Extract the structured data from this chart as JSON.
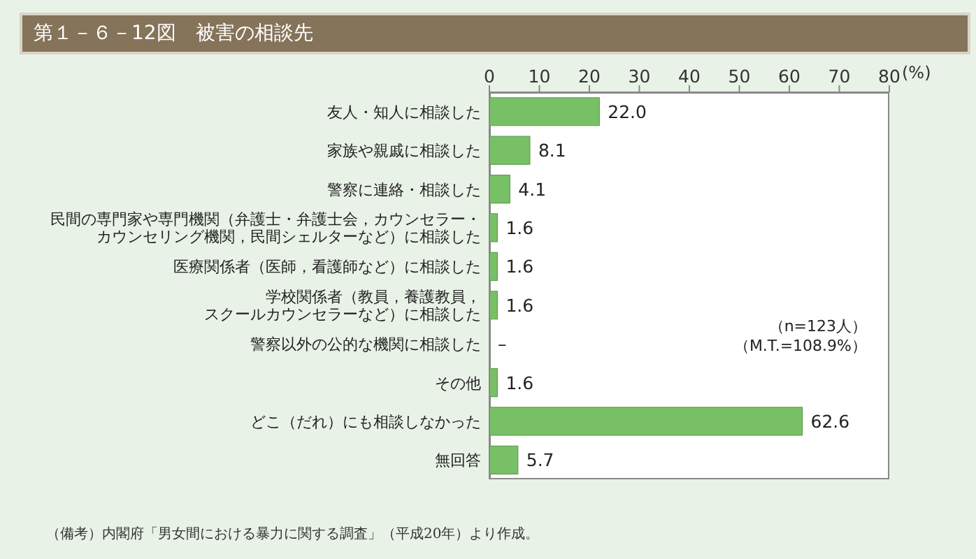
{
  "chart_data": {
    "type": "bar",
    "orientation": "horizontal",
    "title": "第１－６－12図　被害の相談先",
    "categories": [
      "友人・知人に相談した",
      "家族や親戚に相談した",
      "警察に連絡・相談した",
      "民間の専門家や専門機関（弁護士・弁護士会，カウンセラー・カウンセリング機関，民間シェルターなど）に相談した",
      "医療関係者（医師，看護師など）に相談した",
      "学校関係者（教員，養護教員，スクールカウンセラーなど）に相談した",
      "警察以外の公的な機関に相談した",
      "その他",
      "どこ（だれ）にも相談しなかった",
      "無回答"
    ],
    "values": [
      22.0,
      8.1,
      4.1,
      1.6,
      1.6,
      1.6,
      0,
      1.6,
      62.6,
      5.7
    ],
    "value_labels": [
      "22.0",
      "8.1",
      "4.1",
      "1.6",
      "1.6",
      "1.6",
      "–",
      "1.6",
      "62.6",
      "5.7"
    ],
    "color": "#78c065",
    "xlim": [
      0,
      80
    ],
    "xticks": [
      0,
      10,
      20,
      30,
      40,
      50,
      60,
      70,
      80
    ],
    "xlabel": "(%)",
    "annotations": [
      "（n=123人）",
      "（M.T.=108.9%）",
      "（備考）内閣府「男女間における暴力に関する調査」（平成20年）より作成。"
    ]
  }
}
